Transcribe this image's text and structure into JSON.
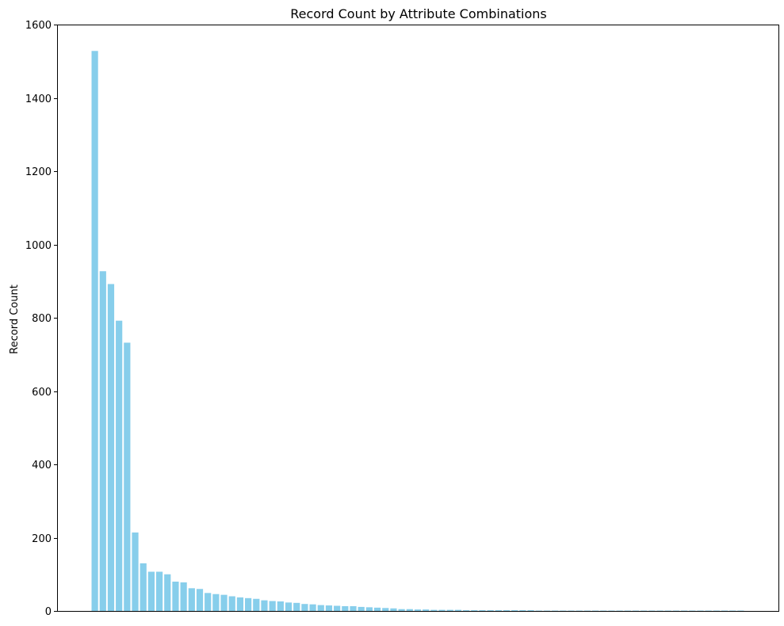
{
  "chart_data": {
    "type": "bar",
    "title": "Record Count by Attribute Combinations",
    "xlabel": "",
    "ylabel": "Record Count",
    "ylim": [
      0,
      1600
    ],
    "yticks": [
      0,
      200,
      400,
      600,
      800,
      1000,
      1200,
      1400,
      1600
    ],
    "grid": false,
    "legend": "none",
    "bar_color": "#87CEEB",
    "values": [
      1528,
      927,
      892,
      792,
      732,
      214,
      130,
      107,
      107,
      100,
      80,
      78,
      62,
      60,
      49,
      46,
      44,
      40,
      37,
      35,
      33,
      29,
      27,
      26,
      23,
      22,
      19,
      18,
      16,
      15,
      14,
      13,
      13,
      11,
      10,
      9,
      8,
      7,
      5,
      5,
      4,
      4,
      3,
      3,
      3,
      3,
      2,
      2,
      2,
      2,
      2,
      2,
      2,
      2,
      2,
      1,
      1,
      1,
      1,
      1,
      1,
      1,
      1,
      1,
      1,
      1,
      1,
      1,
      1,
      1,
      1,
      1,
      1,
      1,
      1,
      1,
      1,
      1,
      1,
      1,
      1
    ]
  }
}
